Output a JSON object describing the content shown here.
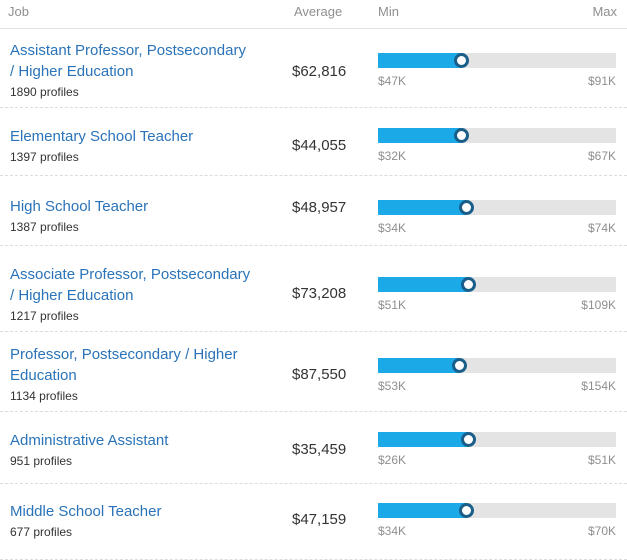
{
  "header": {
    "job": "Job",
    "average": "Average",
    "min": "Min",
    "max": "Max"
  },
  "rows": [
    {
      "title_lines": [
        "Assistant Professor, Postsecondary",
        "/ Higher Education"
      ],
      "profiles": "1890 profiles",
      "average": "$62,816",
      "min": "$47K",
      "max": "$91K",
      "fill_fraction": 0.35
    },
    {
      "title_lines": [
        "Elementary School Teacher"
      ],
      "profiles": "1397 profiles",
      "average": "$44,055",
      "min": "$32K",
      "max": "$67K",
      "fill_fraction": 0.35
    },
    {
      "title_lines": [
        "High School Teacher"
      ],
      "profiles": "1387 profiles",
      "average": "$48,957",
      "min": "$34K",
      "max": "$74K",
      "fill_fraction": 0.37
    },
    {
      "title_lines": [
        "Associate Professor, Postsecondary",
        "/ Higher Education"
      ],
      "profiles": "1217 profiles",
      "average": "$73,208",
      "min": "$51K",
      "max": "$109K",
      "fill_fraction": 0.38
    },
    {
      "title_lines": [
        "Professor, Postsecondary / Higher",
        "Education"
      ],
      "profiles": "1134 profiles",
      "average": "$87,550",
      "min": "$53K",
      "max": "$154K",
      "fill_fraction": 0.34
    },
    {
      "title_lines": [
        "Administrative Assistant"
      ],
      "profiles": "951 profiles",
      "average": "$35,459",
      "min": "$26K",
      "max": "$51K",
      "fill_fraction": 0.38
    },
    {
      "title_lines": [
        "Middle School Teacher"
      ],
      "profiles": "677 profiles",
      "average": "$47,159",
      "min": "$34K",
      "max": "$70K",
      "fill_fraction": 0.37
    }
  ]
}
